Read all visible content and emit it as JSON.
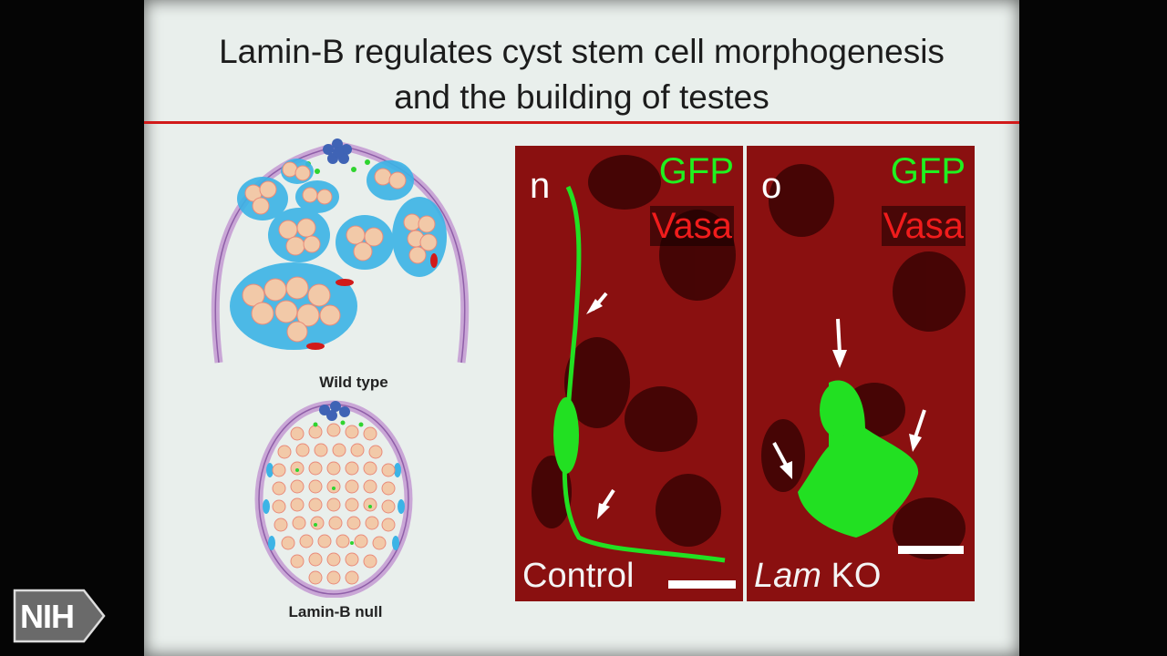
{
  "slide": {
    "title_line1": "Lamin-B regulates cyst stem cell morphogenesis",
    "title_line2": "and the building of testes"
  },
  "diagrams": {
    "wild_type_label": "Wild type",
    "null_label": "Lamin-B null"
  },
  "panels": [
    {
      "letter": "n",
      "channel_top": "GFP",
      "channel_bottom": "Vasa",
      "bottom_label": "Control",
      "bottom_label_italic": ""
    },
    {
      "letter": "o",
      "channel_top": "GFP",
      "channel_bottom": "Vasa",
      "bottom_label": "KO",
      "bottom_label_italic": "Lam"
    }
  ],
  "logo": {
    "text": "NIH"
  },
  "colors": {
    "title_rule": "#d11a1a",
    "gfp": "#1ff21f",
    "vasa": "#f01c1c"
  }
}
